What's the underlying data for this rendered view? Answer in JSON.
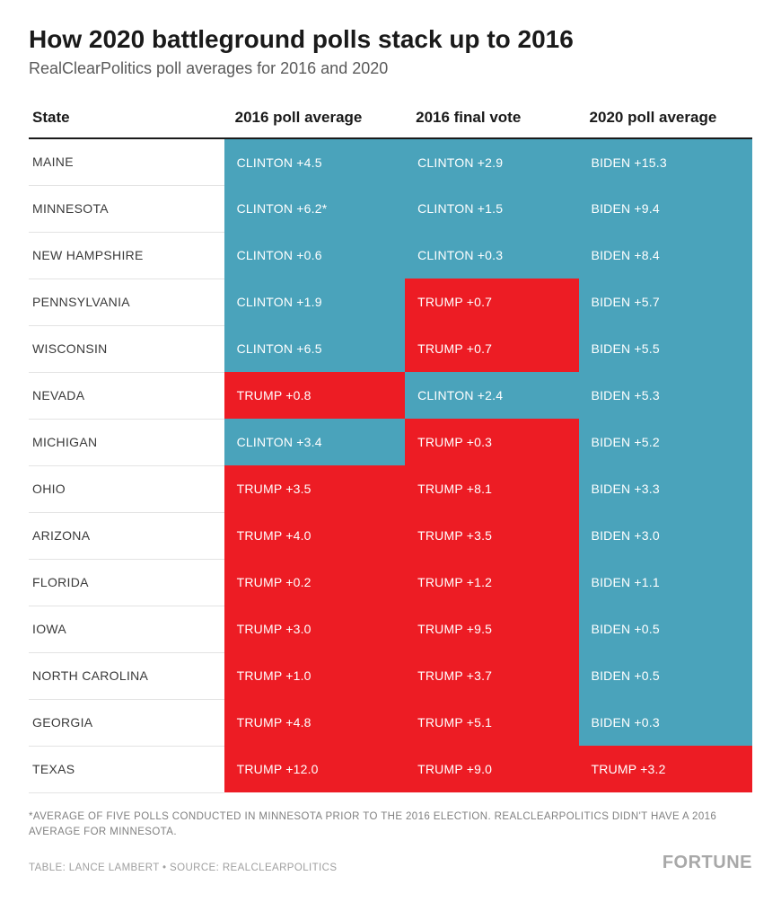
{
  "title": "How 2020 battleground polls stack up to 2016",
  "subtitle": "RealClearPolitics poll averages for 2016 and 2020",
  "colors": {
    "dem": "#4aa3bb",
    "rep": "#ed1c24",
    "header_border": "#1a1a1a",
    "row_border": "#e3e3e3",
    "cell_text": "#ffffff"
  },
  "columns": [
    "State",
    "2016 poll average",
    "2016 final vote",
    "2020 poll average"
  ],
  "column_widths": [
    "27%",
    "25%",
    "24%",
    "24%"
  ],
  "rows": [
    {
      "state": "MAINE",
      "c1": {
        "text": "CLINTON +4.5",
        "party": "dem"
      },
      "c2": {
        "text": "CLINTON +2.9",
        "party": "dem"
      },
      "c3": {
        "text": "BIDEN +15.3",
        "party": "dem"
      }
    },
    {
      "state": "MINNESOTA",
      "c1": {
        "text": "CLINTON +6.2*",
        "party": "dem"
      },
      "c2": {
        "text": "CLINTON +1.5",
        "party": "dem"
      },
      "c3": {
        "text": "BIDEN +9.4",
        "party": "dem"
      }
    },
    {
      "state": "NEW HAMPSHIRE",
      "c1": {
        "text": "CLINTON +0.6",
        "party": "dem"
      },
      "c2": {
        "text": "CLINTON +0.3",
        "party": "dem"
      },
      "c3": {
        "text": "BIDEN +8.4",
        "party": "dem"
      }
    },
    {
      "state": "PENNSYLVANIA",
      "c1": {
        "text": "CLINTON +1.9",
        "party": "dem"
      },
      "c2": {
        "text": "TRUMP +0.7",
        "party": "rep"
      },
      "c3": {
        "text": "BIDEN +5.7",
        "party": "dem"
      }
    },
    {
      "state": "WISCONSIN",
      "c1": {
        "text": "CLINTON +6.5",
        "party": "dem"
      },
      "c2": {
        "text": "TRUMP +0.7",
        "party": "rep"
      },
      "c3": {
        "text": "BIDEN +5.5",
        "party": "dem"
      }
    },
    {
      "state": "NEVADA",
      "c1": {
        "text": "TRUMP +0.8",
        "party": "rep"
      },
      "c2": {
        "text": "CLINTON +2.4",
        "party": "dem"
      },
      "c3": {
        "text": "BIDEN +5.3",
        "party": "dem"
      }
    },
    {
      "state": "MICHIGAN",
      "c1": {
        "text": "CLINTON +3.4",
        "party": "dem"
      },
      "c2": {
        "text": "TRUMP +0.3",
        "party": "rep"
      },
      "c3": {
        "text": "BIDEN +5.2",
        "party": "dem"
      }
    },
    {
      "state": "OHIO",
      "c1": {
        "text": "TRUMP +3.5",
        "party": "rep"
      },
      "c2": {
        "text": "TRUMP +8.1",
        "party": "rep"
      },
      "c3": {
        "text": "BIDEN +3.3",
        "party": "dem"
      }
    },
    {
      "state": "ARIZONA",
      "c1": {
        "text": "TRUMP +4.0",
        "party": "rep"
      },
      "c2": {
        "text": "TRUMP +3.5",
        "party": "rep"
      },
      "c3": {
        "text": "BIDEN +3.0",
        "party": "dem"
      }
    },
    {
      "state": "FLORIDA",
      "c1": {
        "text": "TRUMP +0.2",
        "party": "rep"
      },
      "c2": {
        "text": "TRUMP +1.2",
        "party": "rep"
      },
      "c3": {
        "text": "BIDEN +1.1",
        "party": "dem"
      }
    },
    {
      "state": "IOWA",
      "c1": {
        "text": "TRUMP +3.0",
        "party": "rep"
      },
      "c2": {
        "text": "TRUMP +9.5",
        "party": "rep"
      },
      "c3": {
        "text": "BIDEN +0.5",
        "party": "dem"
      }
    },
    {
      "state": "NORTH CAROLINA",
      "c1": {
        "text": "TRUMP +1.0",
        "party": "rep"
      },
      "c2": {
        "text": "TRUMP +3.7",
        "party": "rep"
      },
      "c3": {
        "text": "BIDEN +0.5",
        "party": "dem"
      }
    },
    {
      "state": "GEORGIA",
      "c1": {
        "text": "TRUMP +4.8",
        "party": "rep"
      },
      "c2": {
        "text": "TRUMP +5.1",
        "party": "rep"
      },
      "c3": {
        "text": "BIDEN +0.3",
        "party": "dem"
      }
    },
    {
      "state": "TEXAS",
      "c1": {
        "text": "TRUMP +12.0",
        "party": "rep"
      },
      "c2": {
        "text": "TRUMP +9.0",
        "party": "rep"
      },
      "c3": {
        "text": "TRUMP +3.2",
        "party": "rep"
      }
    }
  ],
  "footnote": "*AVERAGE OF FIVE POLLS CONDUCTED IN MINNESOTA PRIOR TO THE 2016 ELECTION. REALCLEARPOLITICS DIDN'T HAVE A 2016 AVERAGE FOR MINNESOTA.",
  "credits": "TABLE: LANCE LAMBERT • SOURCE: REALCLEARPOLITICS",
  "brand": "FORTUNE"
}
